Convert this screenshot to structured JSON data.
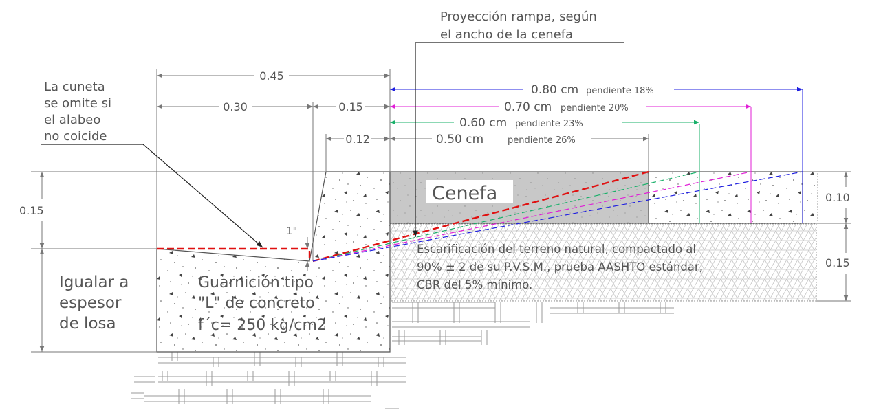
{
  "notes": {
    "projection_line1": "Proyección rampa, según",
    "projection_line2": "el ancho de la cenefa",
    "cuneta_line1": "La cuneta",
    "cuneta_line2": "se omite si",
    "cuneta_line3": "el alabeo",
    "cuneta_line4": "no coicide",
    "igualar_line1": "Igualar a",
    "igualar_line2": "espesor",
    "igualar_line3": "de losa",
    "guarnicion_line1": "Guarnición tipo",
    "guarnicion_line2": "\"L\" de concreto",
    "guarnicion_line3": "f´c= 250 kg/cm2",
    "escarificacion_line1": "Escarificación del terreno natural, compactado al",
    "escarificacion_line2": "90% ± 2 de su P.V.S.M., prueba AASHTO estándar,",
    "escarificacion_line3": "CBR del 5% mínimo.",
    "cenefa": "Cenefa"
  },
  "dimensions": {
    "top_width": "0.45",
    "curb_width": "0.30",
    "slope_width": "0.15",
    "offset": "0.12",
    "curb_height": "0.15",
    "cenefa_thickness": "0.10",
    "base_thickness": "0.15",
    "cuneta_drop": "1\""
  },
  "ramps": [
    {
      "width": "0.80 cm",
      "slope": "pendiente 18%",
      "color": "#1f1fe0"
    },
    {
      "width": "0.70 cm",
      "slope": "pendiente 20%",
      "color": "#e01fd6"
    },
    {
      "width": "0.60 cm",
      "slope": "pendiente 23%",
      "color": "#19b06a"
    },
    {
      "width": "0.50 cm",
      "slope": "pendiente 26%",
      "color": "#606060"
    }
  ],
  "colors": {
    "cenefa_fill": "#c8c8c8",
    "red_ramp": "#e01010",
    "dimension_line": "#777777"
  }
}
